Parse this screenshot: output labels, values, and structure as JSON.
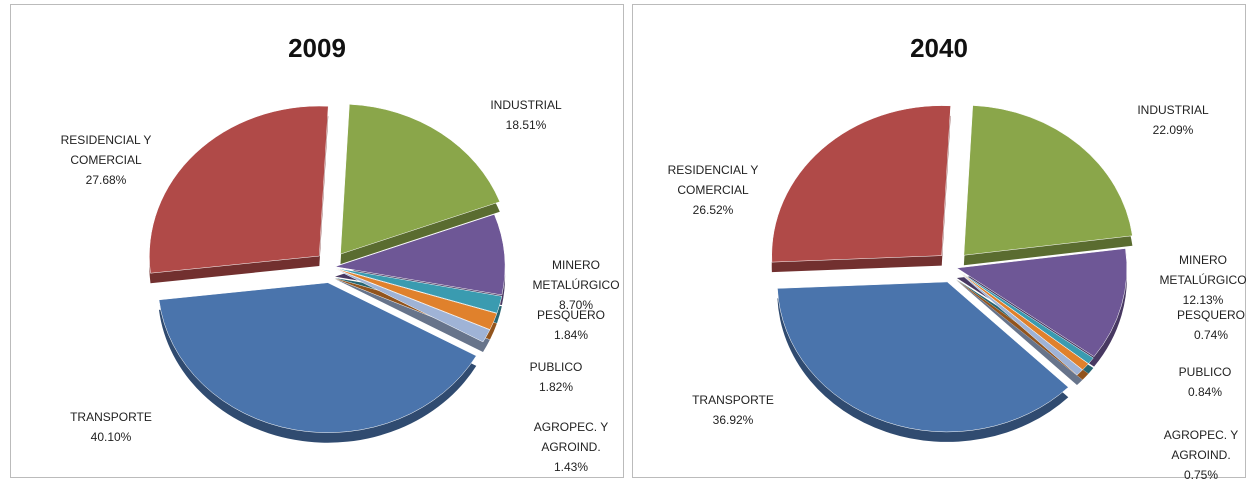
{
  "chart_data": [
    {
      "type": "pie",
      "title": "2009",
      "categories": [
        "INDUSTRIAL",
        "MINERO METALÚRGICO",
        "PESQUERO",
        "PUBLICO",
        "AGROPEC. Y AGROIND.",
        "TRANSPORTE",
        "RESIDENCIAL Y COMERCIAL"
      ],
      "values": [
        18.51,
        8.7,
        1.84,
        1.82,
        1.43,
        40.1,
        27.68
      ],
      "value_labels": [
        "18.51%",
        "8.70%",
        "1.84%",
        "1.82%",
        "1.43%",
        "40.10%",
        "27.68%"
      ],
      "colors": [
        "#8aa64a",
        "#6e5796",
        "#3a9bb0",
        "#e0812c",
        "#9fb3d6",
        "#4a74ac",
        "#b04a48"
      ]
    },
    {
      "type": "pie",
      "title": "2040",
      "categories": [
        "INDUSTRIAL",
        "MINERO METALÚRGICO",
        "PESQUERO",
        "PUBLICO",
        "AGROPEC. Y AGROIND.",
        "TRANSPORTE",
        "RESIDENCIAL Y COMERCIAL"
      ],
      "values": [
        22.09,
        12.13,
        0.74,
        0.84,
        0.75,
        36.92,
        26.52
      ],
      "value_labels": [
        "22.09%",
        "12.13%",
        "0.74%",
        "0.84%",
        "0.75%",
        "36.92%",
        "26.52%"
      ],
      "colors": [
        "#8aa64a",
        "#6e5796",
        "#3a9bb0",
        "#e0812c",
        "#9fb3d6",
        "#4a74ac",
        "#b04a48"
      ]
    }
  ]
}
